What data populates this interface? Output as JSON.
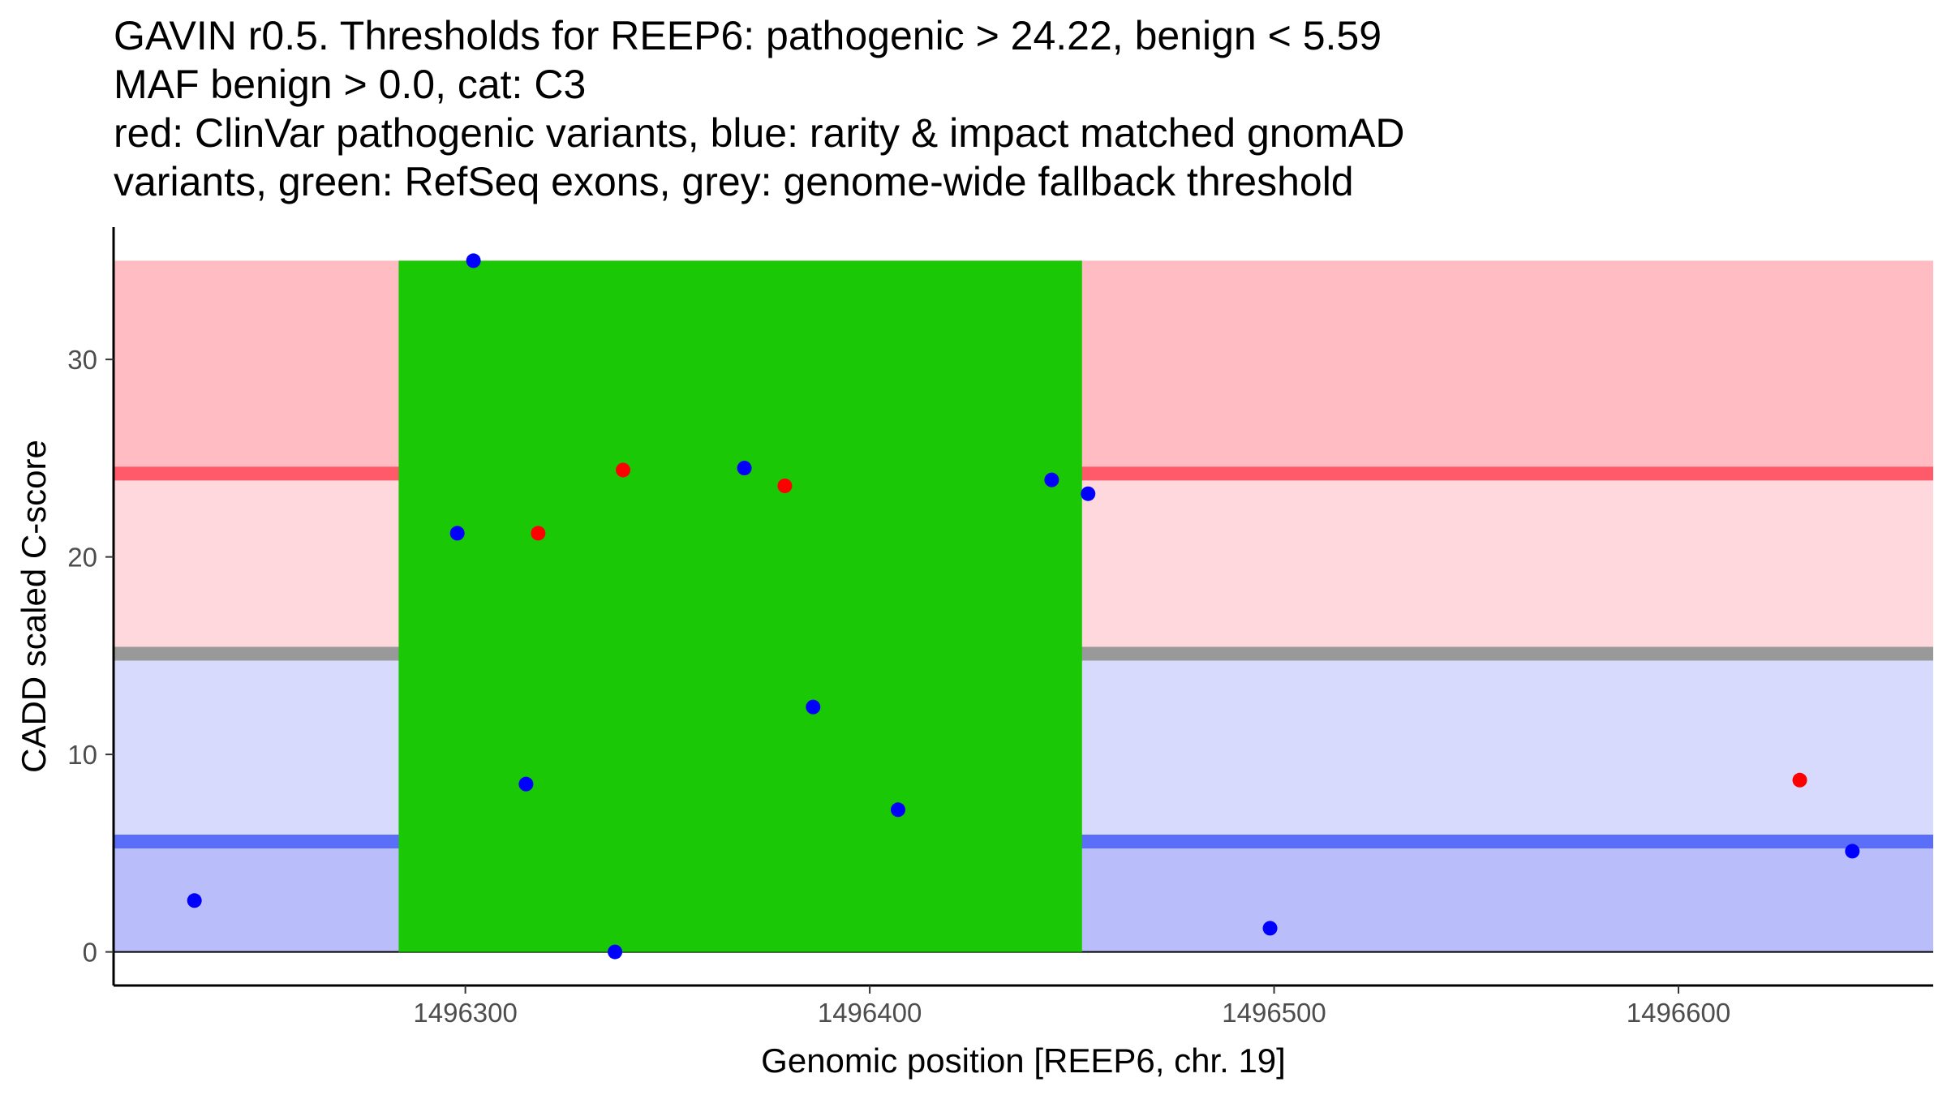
{
  "title_lines": [
    "GAVIN r0.5. Thresholds for REEP6: pathogenic > 24.22, benign < 5.59",
    "MAF benign > 0.0, cat: C3",
    "red: ClinVar pathogenic variants, blue: rarity & impact matched gnomAD",
    "variants, green: RefSeq exons, grey: genome-wide fallback threshold"
  ],
  "colors": {
    "pathogenic_band_high": "#ffbcc2",
    "pathogenic_band_low": "#ffd8dd",
    "benign_band_high": "#d7dafd",
    "benign_band_low": "#b9befa",
    "pathogenic_line": "#ff5a6a",
    "benign_line": "#5a6ef7",
    "fallback_line": "#999999",
    "exon": "#1bc805",
    "clinvar": "#ff0000",
    "gnomad": "#0000ff"
  },
  "chart_data": {
    "type": "scatter",
    "title": "GAVIN r0.5. Thresholds for REEP6: pathogenic > 24.22, benign < 5.59",
    "xlabel": "Genomic position [REEP6, chr. 19]",
    "ylabel": "CADD scaled C-score",
    "xlim": [
      1496213,
      1496663
    ],
    "ylim": [
      -1.7,
      36.7
    ],
    "x_ticks": [
      1496300,
      1496400,
      1496500,
      1496600
    ],
    "x_tick_labels": [
      "1496300",
      "1496400",
      "1496500",
      "1496600"
    ],
    "y_ticks": [
      0,
      10,
      20,
      30
    ],
    "y_tick_labels": [
      "0",
      "10",
      "20",
      "30"
    ],
    "grid": false,
    "thresholds": {
      "pathogenic": 24.22,
      "benign": 5.59,
      "fallback": 15.1,
      "max": 35
    },
    "bands": [
      {
        "name": "pathogenic-band-high",
        "y0": 24.22,
        "y1": 35,
        "color": "#ffbcc2"
      },
      {
        "name": "pathogenic-band-low",
        "y0": 15.1,
        "y1": 24.22,
        "color": "#ffd8dd"
      },
      {
        "name": "benign-band-high",
        "y0": 5.59,
        "y1": 15.1,
        "color": "#d7dafd"
      },
      {
        "name": "benign-band-low",
        "y0": 0,
        "y1": 5.59,
        "color": "#b9befa"
      }
    ],
    "exons": [
      {
        "start": 1496283.5,
        "end": 1496452.5
      }
    ],
    "series": [
      {
        "name": "ClinVar pathogenic variants",
        "color": "#ff0000",
        "points": [
          {
            "x": 1496318,
            "y": 21.2
          },
          {
            "x": 1496339,
            "y": 24.4
          },
          {
            "x": 1496379,
            "y": 23.6
          },
          {
            "x": 1496630,
            "y": 8.7
          }
        ]
      },
      {
        "name": "rarity & impact matched gnomAD variants",
        "color": "#0000ff",
        "points": [
          {
            "x": 1496233,
            "y": 2.6
          },
          {
            "x": 1496298,
            "y": 21.2
          },
          {
            "x": 1496302,
            "y": 35.0
          },
          {
            "x": 1496315,
            "y": 8.5
          },
          {
            "x": 1496337,
            "y": 0.0
          },
          {
            "x": 1496369,
            "y": 24.5
          },
          {
            "x": 1496386,
            "y": 12.4
          },
          {
            "x": 1496407,
            "y": 7.2
          },
          {
            "x": 1496445,
            "y": 23.9
          },
          {
            "x": 1496454,
            "y": 23.2
          },
          {
            "x": 1496499,
            "y": 1.2
          },
          {
            "x": 1496643,
            "y": 5.1
          }
        ]
      }
    ]
  }
}
